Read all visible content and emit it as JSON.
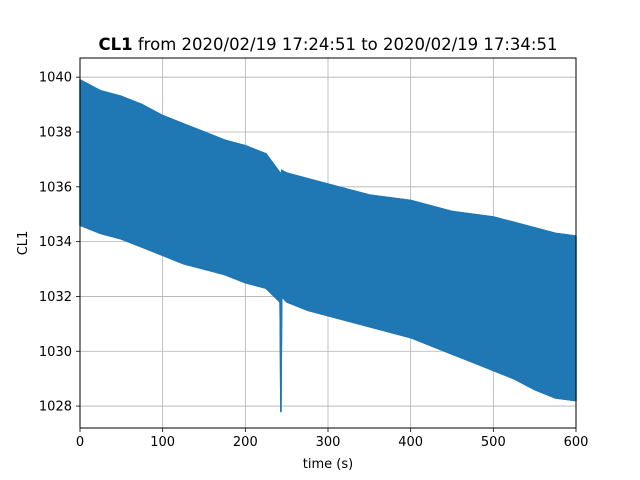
{
  "chart_data": {
    "type": "line",
    "title_bold": "CL1",
    "title_rest": " from 2020/02/19 17:24:51 to 2020/02/19 17:34:51",
    "xlabel": "time (s)",
    "ylabel": "CL1",
    "xlim": [
      0,
      600
    ],
    "ylim": [
      1027.2,
      1040.7
    ],
    "xticks": [
      0,
      100,
      200,
      300,
      400,
      500,
      600
    ],
    "xtick_labels": [
      "0",
      "100",
      "200",
      "300",
      "400",
      "500",
      "600"
    ],
    "yticks": [
      1028,
      1030,
      1032,
      1034,
      1036,
      1038,
      1040
    ],
    "ytick_labels": [
      "1028",
      "1030",
      "1032",
      "1034",
      "1036",
      "1038",
      "1040"
    ],
    "grid": true,
    "color": "#1f77b4",
    "series": [
      {
        "x": [
          0,
          25,
          50,
          75,
          100,
          125,
          150,
          175,
          200,
          225,
          242,
          243,
          244,
          250,
          275,
          300,
          325,
          350,
          375,
          400,
          425,
          450,
          475,
          500,
          525,
          550,
          575,
          600
        ],
        "upper": [
          1039.9,
          1039.5,
          1039.3,
          1039.0,
          1038.6,
          1038.3,
          1038.0,
          1037.7,
          1037.5,
          1037.2,
          1036.5,
          1035.0,
          1036.6,
          1036.5,
          1036.3,
          1036.1,
          1035.9,
          1035.7,
          1035.6,
          1035.5,
          1035.3,
          1035.1,
          1035.0,
          1034.9,
          1034.7,
          1034.5,
          1034.3,
          1034.2
        ],
        "lower": [
          1034.6,
          1034.3,
          1034.1,
          1033.8,
          1033.5,
          1033.2,
          1033.0,
          1032.8,
          1032.5,
          1032.3,
          1031.8,
          1027.8,
          1032.0,
          1031.8,
          1031.5,
          1031.3,
          1031.1,
          1030.9,
          1030.7,
          1030.5,
          1030.2,
          1029.9,
          1029.6,
          1029.3,
          1029.0,
          1028.6,
          1028.3,
          1028.2
        ]
      }
    ]
  }
}
